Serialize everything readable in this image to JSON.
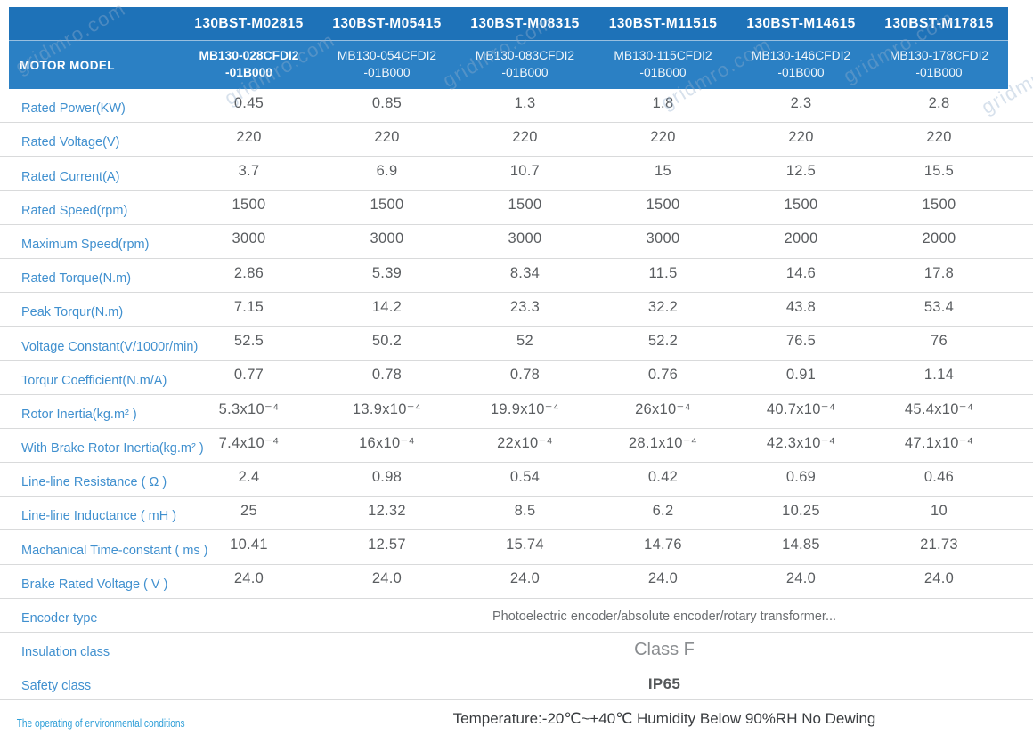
{
  "watermark": {
    "text": "gridmro.com"
  },
  "colors": {
    "header_blue_dark": "#1e72b8",
    "header_blue_light": "#2b80c4",
    "label_blue": "#4090cf",
    "value_gray": "#5a5d60"
  },
  "header": {
    "row_label": "MOTOR MODEL",
    "columns": [
      {
        "code": "130BST-M02815",
        "model": "MB130-028CFDI2\n-01B000"
      },
      {
        "code": "130BST-M05415",
        "model": "MB130-054CFDI2\n-01B000"
      },
      {
        "code": "130BST-M08315",
        "model": "MB130-083CFDI2\n-01B000"
      },
      {
        "code": "130BST-M11515",
        "model": "MB130-115CFDI2\n-01B000"
      },
      {
        "code": "130BST-M14615",
        "model": "MB130-146CFDI2\n-01B000"
      },
      {
        "code": "130BST-M17815",
        "model": "MB130-178CFDI2\n-01B000"
      }
    ]
  },
  "table": {
    "rows": [
      {
        "label": "Rated Power(KW)",
        "values": [
          "0.45",
          "0.85",
          "1.3",
          "1.8",
          "2.3",
          "2.8"
        ]
      },
      {
        "label": "Rated Voltage(V)",
        "values": [
          "220",
          "220",
          "220",
          "220",
          "220",
          "220"
        ]
      },
      {
        "label": "Rated Current(A)",
        "values": [
          "3.7",
          "6.9",
          "10.7",
          "15",
          "12.5",
          "15.5"
        ]
      },
      {
        "label": "Rated Speed(rpm)",
        "values": [
          "1500",
          "1500",
          "1500",
          "1500",
          "1500",
          "1500"
        ]
      },
      {
        "label": "Maximum Speed(rpm)",
        "values": [
          "3000",
          "3000",
          "3000",
          "3000",
          "2000",
          "2000"
        ]
      },
      {
        "label": "Rated Torque(N.m)",
        "values": [
          "2.86",
          "5.39",
          "8.34",
          "11.5",
          "14.6",
          "17.8"
        ]
      },
      {
        "label": "Peak Torqur(N.m)",
        "values": [
          "7.15",
          "14.2",
          "23.3",
          "32.2",
          "43.8",
          "53.4"
        ]
      },
      {
        "label": "Voltage Constant(V/1000r/min)",
        "values": [
          "52.5",
          "50.2",
          "52",
          "52.2",
          "76.5",
          "76"
        ]
      },
      {
        "label": "Torqur Coefficient(N.m/A)",
        "values": [
          "0.77",
          "0.78",
          "0.78",
          "0.76",
          "0.91",
          "1.14"
        ]
      },
      {
        "label": "Rotor Inertia(kg.m² )",
        "values": [
          "5.3x10⁻⁴",
          "13.9x10⁻⁴",
          "19.9x10⁻⁴",
          "26x10⁻⁴",
          "40.7x10⁻⁴",
          "45.4x10⁻⁴"
        ]
      },
      {
        "label": "With Brake Rotor Inertia(kg.m² )",
        "values": [
          "7.4x10⁻⁴",
          "16x10⁻⁴",
          "22x10⁻⁴",
          "28.1x10⁻⁴",
          "42.3x10⁻⁴",
          "47.1x10⁻⁴"
        ]
      },
      {
        "label": "Line-line Resistance ( Ω )",
        "values": [
          "2.4",
          "0.98",
          "0.54",
          "0.42",
          "0.69",
          "0.46"
        ]
      },
      {
        "label": "Line-line Inductance ( mH )",
        "values": [
          "25",
          "12.32",
          "8.5",
          "6.2",
          "10.25",
          "10"
        ]
      },
      {
        "label": "Machanical Time-constant ( ms )",
        "values": [
          "10.41",
          "12.57",
          "15.74",
          "14.76",
          "14.85",
          "21.73"
        ]
      },
      {
        "label": "Brake Rated Voltage ( V )",
        "values": [
          "24.0",
          "24.0",
          "24.0",
          "24.0",
          "24.0",
          "24.0"
        ]
      },
      {
        "label": "Encoder type",
        "value": "Photoelectric encoder/absolute encoder/rotary transformer..."
      },
      {
        "label": "Insulation class",
        "value": "Class F"
      },
      {
        "label": "Safety class",
        "value": "IP65"
      },
      {
        "label": "The operating of environmental conditions",
        "value": "Temperature:-20℃~+40℃  Humidity Below 90%RH No Dewing",
        "condensed_label": true
      }
    ]
  }
}
